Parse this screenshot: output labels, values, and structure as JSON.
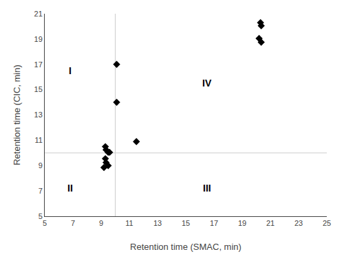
{
  "chart_data": {
    "type": "scatter",
    "xlabel": "Retention time (SMAC, min)",
    "ylabel": "Retention time (CIC, min)",
    "x": [
      9.3,
      9.35,
      9.5,
      9.6,
      9.3,
      9.35,
      9.5,
      9.2,
      10.1,
      10.1,
      11.5,
      20.3,
      20.35,
      20.2,
      20.35
    ],
    "values": [
      10.5,
      10.25,
      10.05,
      10.05,
      9.55,
      9.25,
      9.0,
      8.85,
      17.0,
      14.0,
      10.9,
      20.3,
      20.05,
      19.05,
      18.75
    ],
    "marker": "diamond",
    "color": "black",
    "xlim": [
      5,
      25
    ],
    "ylim": [
      5,
      21
    ],
    "xticks": [
      5,
      7,
      9,
      11,
      13,
      15,
      17,
      19,
      21,
      23,
      25
    ],
    "yticks": [
      5,
      7,
      9,
      11,
      13,
      15,
      17,
      19,
      21
    ],
    "crosshairs": {
      "x": 10,
      "y": 10,
      "color": "#cccccc"
    },
    "annotations": [
      {
        "text": "I",
        "x": 6.8,
        "y": 16.5
      },
      {
        "text": "II",
        "x": 6.8,
        "y": 7.2
      },
      {
        "text": "III",
        "x": 16.5,
        "y": 7.2
      },
      {
        "text": "IV",
        "x": 16.5,
        "y": 15.5
      }
    ],
    "grid": false
  }
}
